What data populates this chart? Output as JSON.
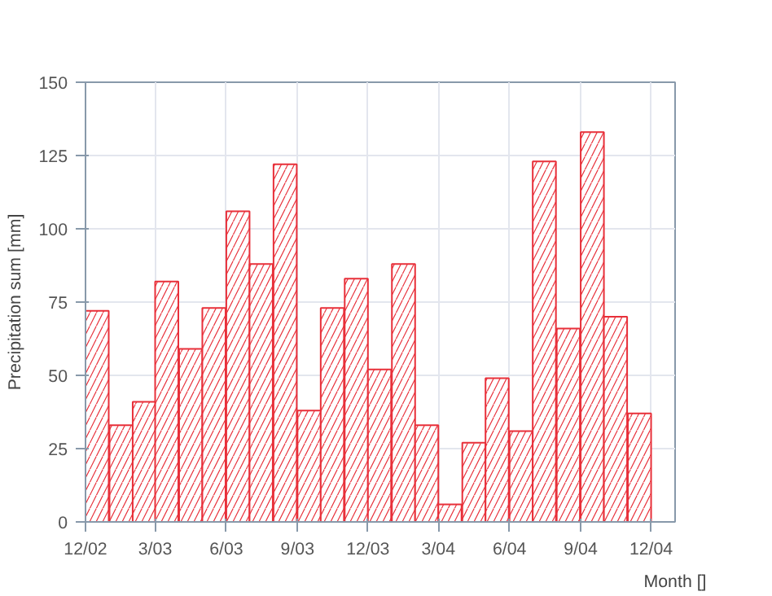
{
  "chart_data": {
    "type": "bar",
    "xlabel": "Month []",
    "ylabel": "Precipitation sum [mm]",
    "x": [
      "2002-12-16",
      "2003-01-16",
      "2003-02-15",
      "2003-03-16",
      "2003-04-16",
      "2003-05-16",
      "2003-06-16",
      "2003-07-16",
      "2003-08-16",
      "2003-09-16",
      "2003-10-16",
      "2003-11-16",
      "2003-12-16",
      "2004-01-16",
      "2004-02-15",
      "2004-03-16",
      "2004-04-16",
      "2004-05-16",
      "2004-06-16",
      "2004-07-16",
      "2004-08-16",
      "2004-09-16",
      "2004-10-16",
      "2004-11-16"
    ],
    "values": [
      72,
      33,
      41,
      82,
      59,
      73,
      106,
      88,
      122,
      38,
      73,
      83,
      52,
      88,
      33,
      6,
      27,
      49,
      31,
      123,
      66,
      133,
      70,
      37
    ],
    "color": "#e8303a",
    "xlim": [
      "2002-12",
      "2005-01"
    ],
    "xticks": [
      {
        "value": "2002-12",
        "label": "12/02"
      },
      {
        "value": "2003-03",
        "label": "3/03"
      },
      {
        "value": "2003-06",
        "label": "6/03"
      },
      {
        "value": "2003-09",
        "label": "9/03"
      },
      {
        "value": "2003-12",
        "label": "12/03"
      },
      {
        "value": "2004-03",
        "label": "3/04"
      },
      {
        "value": "2004-06",
        "label": "6/04"
      },
      {
        "value": "2004-09",
        "label": "9/04"
      },
      {
        "value": "2004-12",
        "label": "12/04"
      }
    ],
    "ylim": [
      0,
      150
    ],
    "yticks": [
      0,
      25,
      50,
      75,
      100,
      125,
      150
    ],
    "grid": true
  }
}
